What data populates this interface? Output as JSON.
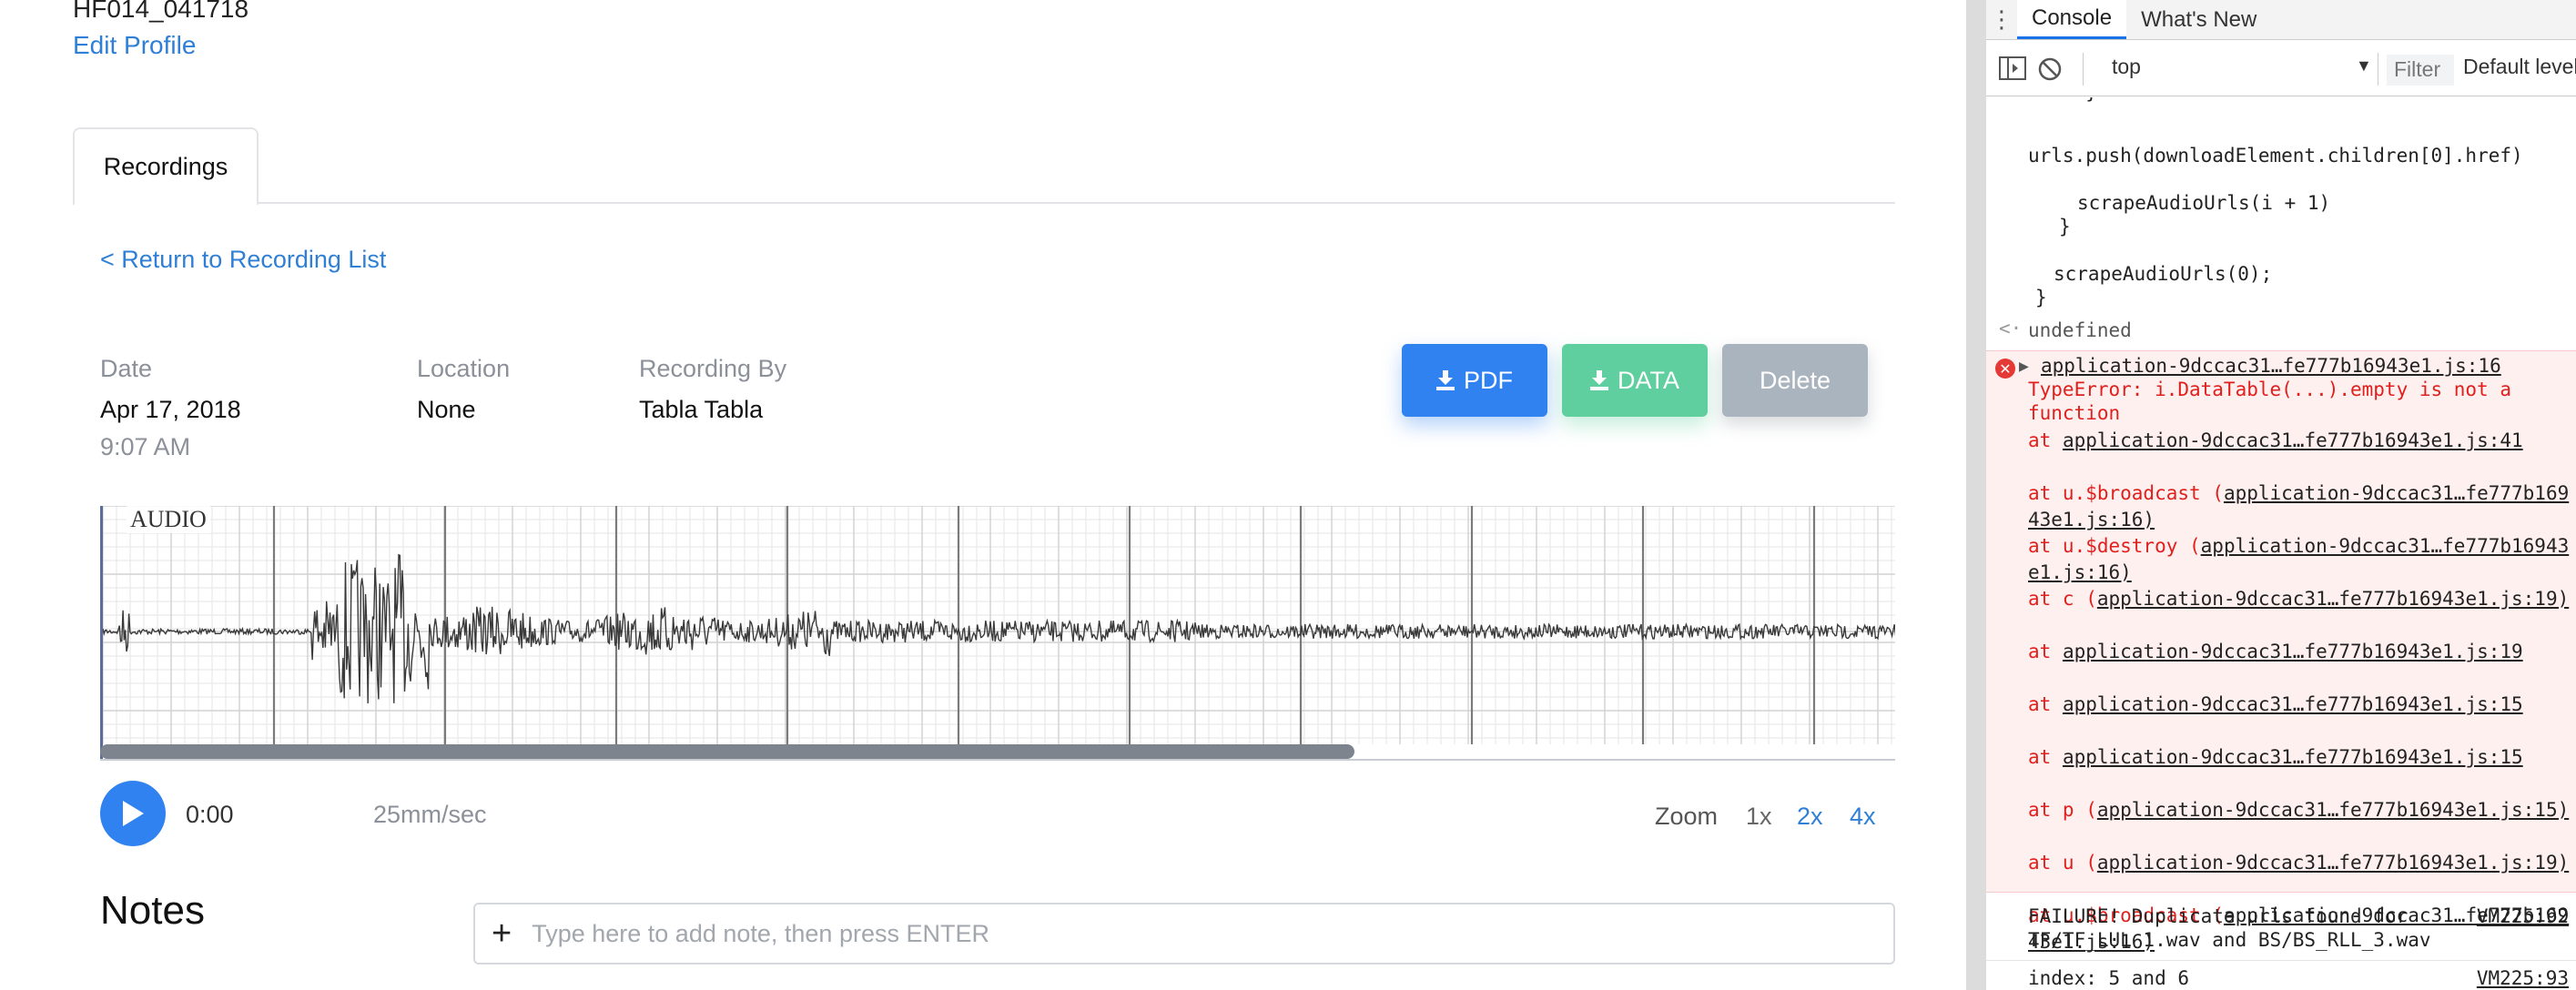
{
  "patient": {
    "id": "HF014_041718",
    "edit_profile": "Edit Profile"
  },
  "tabs": [
    {
      "label": "Recordings",
      "active": true
    }
  ],
  "return_link": "< Return to Recording List",
  "recording": {
    "date_label": "Date",
    "date_value": "Apr 17, 2018",
    "time_value": "9:07 AM",
    "location_label": "Location",
    "location_value": "None",
    "by_label": "Recording By",
    "by_value": "Tabla Tabla"
  },
  "buttons": {
    "pdf": "PDF",
    "data": "DATA",
    "delete": "Delete"
  },
  "player": {
    "audio_label": "AUDIO",
    "time": "0:00",
    "speed": "25mm/sec",
    "zoom_label": "Zoom",
    "zoom_options": [
      "1x",
      "2x",
      "4x"
    ],
    "zoom_selected": "1x",
    "scroll_fraction": 0.7
  },
  "notes": {
    "title": "Notes",
    "placeholder": "Type here to add note, then press ENTER"
  },
  "devtools": {
    "tabs": [
      "Console",
      "What's New"
    ],
    "context": "top",
    "filter_placeholder": "Filter",
    "level": "Default levels",
    "code_lines": [
      "urls.push(downloadElement.children[0].href)",
      "scrapeAudioUrls(i + 1)",
      "}",
      "scrapeAudioUrls(0);",
      "}"
    ],
    "undefined": "undefined",
    "error_source": "application-9dccac31…fe777b16943e1.js:16",
    "error_message": "TypeError: i.DataTable(...).empty is not a function",
    "stack": [
      {
        "prefix": "at ",
        "link": "application-9dccac31…fe777b16943e1.js:41"
      },
      {
        "prefix": "at u.$broadcast (",
        "link": "application-9dccac31…fe777b16943e1.js:16",
        "suffix": ")"
      },
      {
        "prefix": "at u.$destroy (",
        "link": "application-9dccac31…fe777b16943e1.js:16",
        "suffix": ")"
      },
      {
        "prefix": "at c (",
        "link": "application-9dccac31…fe777b16943e1.js:19",
        "suffix": ")"
      },
      {
        "prefix": "at ",
        "link": "application-9dccac31…fe777b16943e1.js:19"
      },
      {
        "prefix": "at ",
        "link": "application-9dccac31…fe777b16943e1.js:15"
      },
      {
        "prefix": "at ",
        "link": "application-9dccac31…fe777b16943e1.js:15"
      },
      {
        "prefix": "at p (",
        "link": "application-9dccac31…fe777b16943e1.js:15",
        "suffix": ")"
      },
      {
        "prefix": "at u (",
        "link": "application-9dccac31…fe777b16943e1.js:19",
        "suffix": ")"
      },
      {
        "prefix": "at u.$broadcast (",
        "link": "application-9dccac31…fe777b16943e1.js:16",
        "suffix": ")"
      }
    ],
    "failure_line1": "FAILURE! Duplicate urls found for",
    "failure_line2": "TF/TF_LUL_1.wav and BS/BS_RLL_3.wav",
    "failure_src": "VM225:92",
    "index_line": "index: 5 and 6",
    "index_src": "VM225:93"
  },
  "colors": {
    "accent": "#2f82f0",
    "data_button": "#5fcf9f",
    "delete_button": "#aab4bf",
    "error_text": "#e0201d"
  }
}
